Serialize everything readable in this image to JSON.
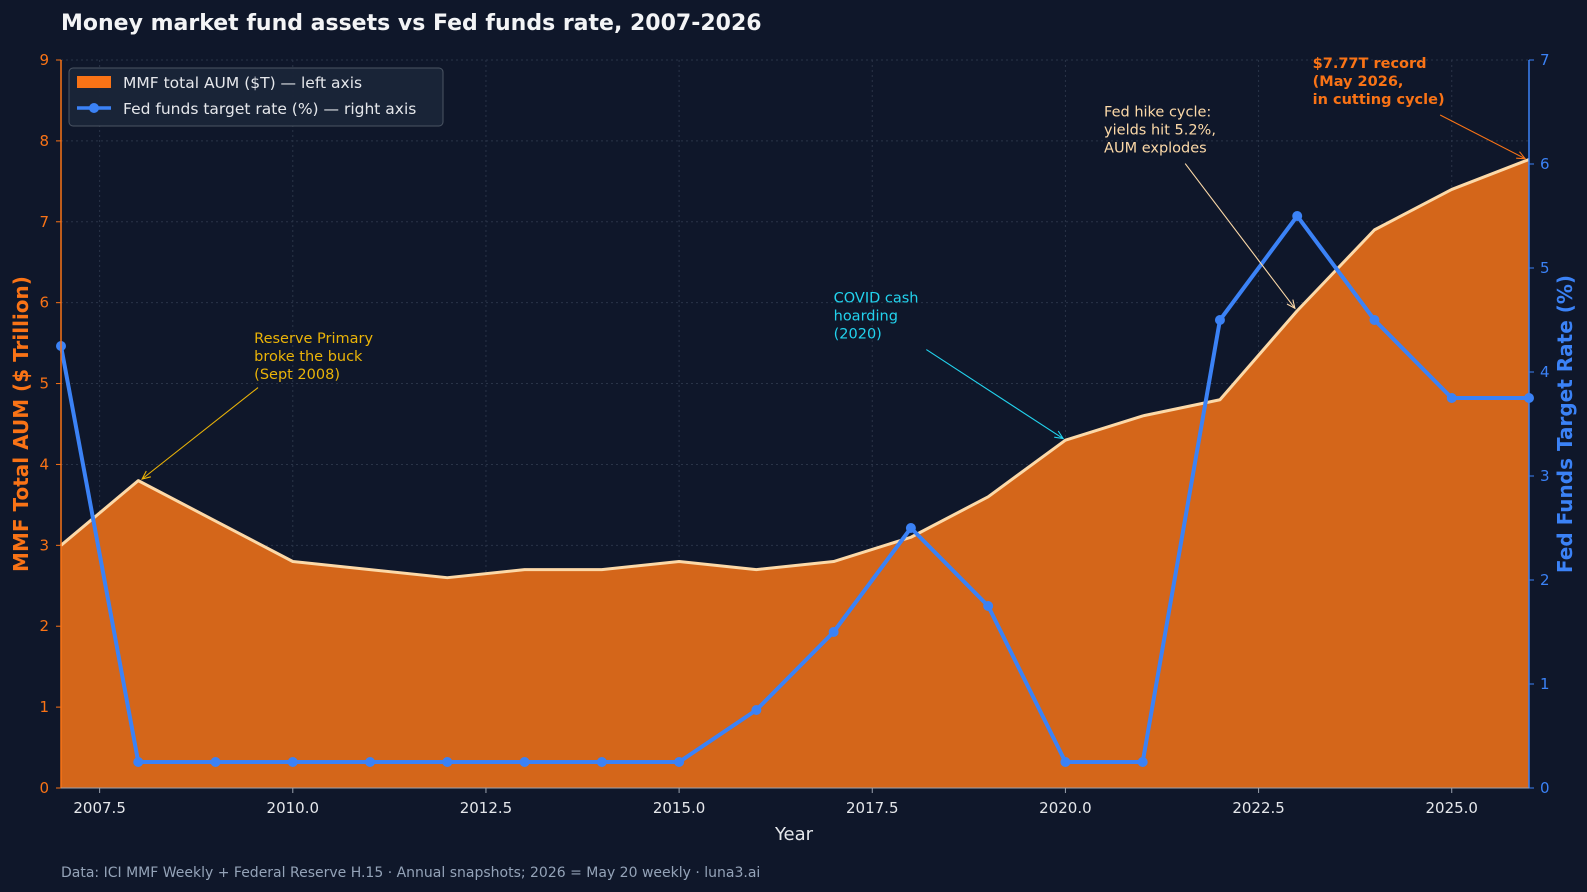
{
  "colors": {
    "background": "#0f172a",
    "plot_bg": "#0f172a",
    "aum_fill": "#d4661a",
    "aum_line": "#fcd9a8",
    "aum_axis": "#f97316",
    "rate_line": "#3b82f6",
    "rate_axis": "#3b82f6",
    "grid": "#2a3448",
    "text": "#e5e7eb",
    "footer": "#94a3b8",
    "ann_reserve": "#eab308",
    "ann_covid": "#22d3ee",
    "ann_hike": "#fcd9a8",
    "ann_record": "#f97316"
  },
  "title": "Money market fund assets vs Fed funds rate, 2007-2026",
  "footer": "Data: ICI MMF Weekly + Federal Reserve H.15  ·  Annual snapshots; 2026 = May 20 weekly  ·  luna3.ai",
  "chart_data": {
    "type": "area",
    "title": "Money market fund assets vs Fed funds rate, 2007-2026",
    "xlabel": "Year",
    "ylabel_left": "MMF Total AUM ($ Trillion)",
    "ylabel_right": "Fed Funds Target Rate (%)",
    "xlim": [
      2007,
      2026
    ],
    "ylim_left": [
      0,
      9
    ],
    "ylim_right": [
      0,
      7
    ],
    "x_ticks": [
      2007.5,
      2010.0,
      2012.5,
      2015.0,
      2017.5,
      2020.0,
      2022.5,
      2025.0
    ],
    "x_tick_labels": [
      "2007.5",
      "2010.0",
      "2012.5",
      "2015.0",
      "2017.5",
      "2020.0",
      "2022.5",
      "2025.0"
    ],
    "y_left_ticks": [
      0,
      1,
      2,
      3,
      4,
      5,
      6,
      7,
      8,
      9
    ],
    "y_left_tick_labels": [
      "0",
      "1",
      "2",
      "3",
      "4",
      "5",
      "6",
      "7",
      "8",
      "9"
    ],
    "y_right_ticks": [
      0,
      1,
      2,
      3,
      4,
      5,
      6,
      7
    ],
    "y_right_tick_labels": [
      "0",
      "1",
      "2",
      "3",
      "4",
      "5",
      "6",
      "7"
    ],
    "grid": true,
    "legend_position": "top-left",
    "x": [
      2007,
      2008,
      2009,
      2010,
      2011,
      2012,
      2013,
      2014,
      2015,
      2016,
      2017,
      2018,
      2019,
      2020,
      2021,
      2022,
      2023,
      2024,
      2025,
      2026
    ],
    "series": [
      {
        "name": "MMF total AUM ($T) — left axis",
        "type": "area",
        "axis": "left",
        "values": [
          3.0,
          3.8,
          3.3,
          2.8,
          2.7,
          2.6,
          2.7,
          2.7,
          2.8,
          2.7,
          2.8,
          3.1,
          3.6,
          4.3,
          4.6,
          4.8,
          5.9,
          6.9,
          7.4,
          7.77
        ]
      },
      {
        "name": "Fed funds target rate (%) — right axis",
        "type": "line",
        "axis": "right",
        "values": [
          4.25,
          0.25,
          0.25,
          0.25,
          0.25,
          0.25,
          0.25,
          0.25,
          0.25,
          0.75,
          1.5,
          2.5,
          1.75,
          0.25,
          0.25,
          4.5,
          5.5,
          4.5,
          3.75,
          3.75
        ]
      }
    ],
    "annotations": [
      {
        "id": "reserve",
        "lines": [
          "Reserve Primary",
          "broke the buck",
          "(Sept 2008)"
        ],
        "text_x": 2009.5,
        "text_y": 5.5,
        "target_x": 2008.05,
        "target_y": 3.82,
        "arrow_from_x": 2009.55,
        "arrow_from_y": 4.95,
        "bold": false,
        "color_key": "ann_reserve"
      },
      {
        "id": "covid",
        "lines": [
          "COVID cash",
          "hoarding",
          "(2020)"
        ],
        "text_x": 2017.0,
        "text_y": 6.0,
        "target_x": 2019.97,
        "target_y": 4.32,
        "arrow_from_x": 2018.2,
        "arrow_from_y": 5.42,
        "bold": false,
        "color_key": "ann_covid"
      },
      {
        "id": "hike",
        "lines": [
          "Fed hike cycle:",
          "yields hit 5.2%,",
          "AUM explodes"
        ],
        "text_x": 2020.5,
        "text_y": 8.3,
        "target_x": 2022.97,
        "target_y": 5.93,
        "arrow_from_x": 2021.55,
        "arrow_from_y": 7.72,
        "bold": false,
        "color_key": "ann_hike"
      },
      {
        "id": "record",
        "lines": [
          "$7.77T record",
          "(May 2026,",
          "in cutting cycle)"
        ],
        "text_x": 2023.2,
        "text_y": 8.9,
        "target_x": 2025.95,
        "target_y": 7.78,
        "arrow_from_x": 2024.85,
        "arrow_from_y": 8.32,
        "bold": true,
        "color_key": "ann_record"
      }
    ]
  }
}
